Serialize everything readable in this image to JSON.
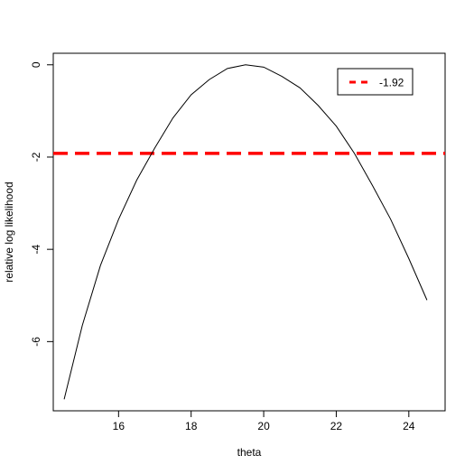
{
  "chart_data": {
    "type": "line",
    "title": "",
    "xlabel": "theta",
    "ylabel": "relative log likelihood",
    "xlim": [
      14.2,
      25.0
    ],
    "ylim": [
      -7.5,
      0.25
    ],
    "x_ticks": [
      16,
      18,
      20,
      22,
      24
    ],
    "x_tick_labels": [
      "16",
      "18",
      "20",
      "22",
      "24"
    ],
    "y_ticks": [
      0,
      -2,
      -4,
      -6
    ],
    "y_tick_labels": [
      "0",
      "-2",
      "-4",
      "-6"
    ],
    "grid": false,
    "series": [
      {
        "color": "#000000",
        "line_style": "solid",
        "x": [
          14.5,
          15.0,
          15.5,
          16.0,
          16.5,
          17.0,
          17.5,
          18.0,
          18.5,
          19.0,
          19.5,
          20.0,
          20.5,
          21.0,
          21.5,
          22.0,
          22.5,
          23.0,
          23.5,
          24.0,
          24.5
        ],
        "y": [
          -7.25,
          -5.65,
          -4.35,
          -3.35,
          -2.5,
          -1.8,
          -1.15,
          -0.65,
          -0.32,
          -0.08,
          0.0,
          -0.05,
          -0.25,
          -0.5,
          -0.88,
          -1.33,
          -1.92,
          -2.62,
          -3.35,
          -4.2,
          -5.1
        ]
      }
    ],
    "hlines": [
      {
        "value": -1.92,
        "label": "-1.92",
        "color": "#ff0000",
        "line_style": "dashed"
      }
    ],
    "legend": {
      "position": "top-right",
      "entries": [
        {
          "label": "-1.92",
          "color": "#ff0000",
          "line_style": "dashed"
        }
      ]
    }
  }
}
